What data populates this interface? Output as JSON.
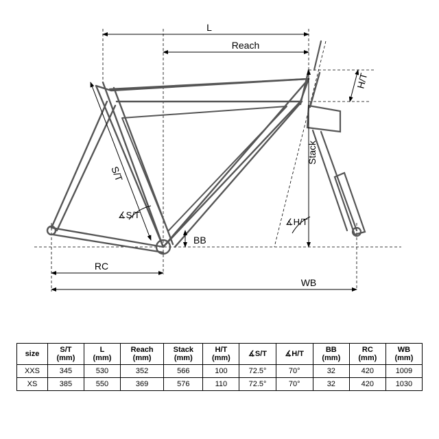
{
  "diagram": {
    "type": "engineering-diagram",
    "stroke_main": "#444444",
    "stroke_dim": "#000000",
    "stroke_dash": "#000000",
    "dash_pattern": "4 3",
    "font": "Arial",
    "label_fontsize": 12,
    "labels": {
      "L": "L",
      "Reach": "Reach",
      "HT": "H/T",
      "Stack": "Stack",
      "ST": "S/T",
      "BB": "BB",
      "RC": "RC",
      "WB": "WB",
      "angleST": "∡S/T",
      "angleHT": "∡H/T"
    }
  },
  "table": {
    "headers": [
      "size",
      "S/T|(mm)",
      "L|(mm)",
      "Reach|(mm)",
      "Stack|(mm)",
      "H/T|(mm)",
      "∡S/T",
      "∡H/T",
      "BB|(mm)",
      "RC|(mm)",
      "WB|(mm)"
    ],
    "rows": [
      [
        "XXS",
        "345",
        "530",
        "352",
        "566",
        "100",
        "72.5°",
        "70°",
        "32",
        "420",
        "1009"
      ],
      [
        "XS",
        "385",
        "550",
        "369",
        "576",
        "110",
        "72.5°",
        "70°",
        "32",
        "420",
        "1030"
      ]
    ],
    "border_color": "#000000",
    "font_size": 11
  }
}
